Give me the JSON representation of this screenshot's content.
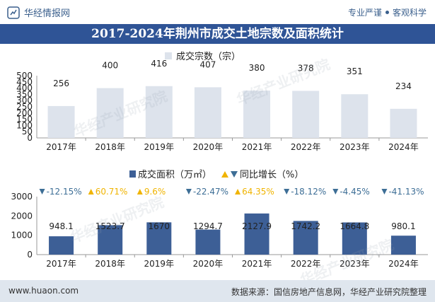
{
  "header": {
    "brand": "华经情报网",
    "tagline_left": "专业严谨",
    "tagline_right": "客观科学"
  },
  "title": "2017-2024年荆州市成交土地宗数及面积统计",
  "colors": {
    "title_bg": "#2f5496",
    "bar1": "#dde3ec",
    "bar2": "#3d5f96",
    "down": "#3d6e96",
    "up": "#f0b400"
  },
  "chart_data": [
    {
      "type": "bar",
      "title": "",
      "legend": "成交宗数（宗）",
      "categories": [
        "2017年",
        "2018年",
        "2019年",
        "2020年",
        "2021年",
        "2022年",
        "2023年",
        "2024年"
      ],
      "values": [
        256,
        400,
        416,
        407,
        380,
        378,
        351,
        234
      ],
      "value_labels": [
        "256",
        "400",
        "416",
        "407",
        "380",
        "378",
        "351",
        "234"
      ],
      "yticks": [
        "0",
        "50",
        "100",
        "150",
        "200",
        "250",
        "300",
        "350",
        "400",
        "450",
        "500"
      ],
      "ylim": [
        0,
        500
      ]
    },
    {
      "type": "bar",
      "title": "",
      "legend": "成交面积（万㎡）",
      "legend2": "同比增长（%）",
      "categories": [
        "2017年",
        "2018年",
        "2019年",
        "2020年",
        "2021年",
        "2022年",
        "2023年",
        "2024年"
      ],
      "values": [
        948.1,
        1523.7,
        1670,
        1294.7,
        2127.9,
        1742.2,
        1664.8,
        980.1
      ],
      "value_labels": [
        "948.1",
        "1523.7",
        "1670",
        "1294.7",
        "2127.9",
        "1742.2",
        "1664.8",
        "980.1"
      ],
      "growth": [
        -12.15,
        60.71,
        9.6,
        -22.47,
        64.35,
        -18.12,
        -4.45,
        -41.13
      ],
      "growth_labels": [
        "-12.15%",
        "60.71%",
        "9.6%",
        "-22.47%",
        "64.35%",
        "-18.12%",
        "-4.45%",
        "-41.13%"
      ],
      "yticks": [
        "0",
        "1000",
        "2000",
        "3000"
      ],
      "ylim": [
        0,
        3000
      ]
    }
  ],
  "watermark": "华经产业研究院",
  "footer": {
    "url": "www.huaon.com",
    "source": "数据来源：国信房地产信息网，华经产业研究院整理"
  }
}
